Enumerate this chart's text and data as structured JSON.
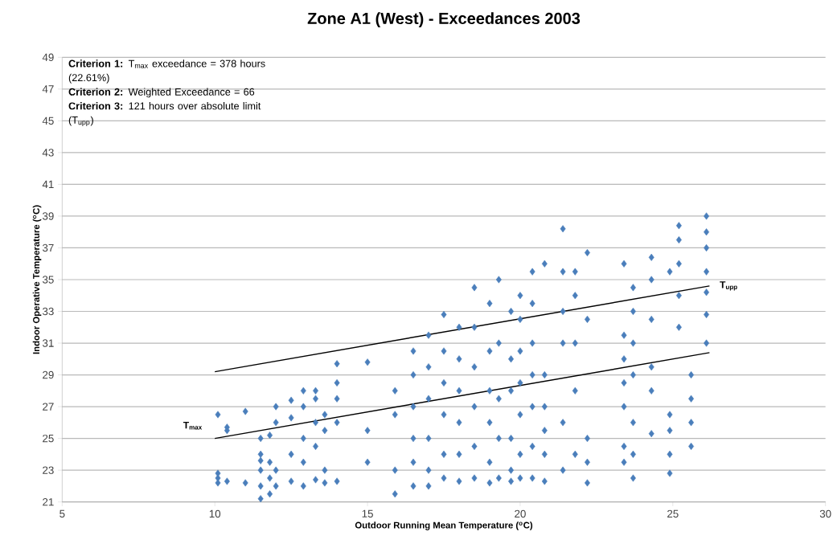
{
  "chart_data": {
    "type": "scatter",
    "title": "Zone A1 (West) - Exceedances 2003",
    "xlabel": "Outdoor Running Mean Temperature ($^{o}$C)",
    "ylabel": "Indoor Operative Temperature ($^{o}$C)",
    "annotations": [
      "**Criterion 1:** T$_{max}$ exceedance = 378 hours (22.61%)",
      "**Criterion 2:** Weighted Exceedance = 66",
      "**Criterion 3:** 121 hours over absolute limit (T$_{upp}$)"
    ],
    "xlim": [
      5,
      30
    ],
    "xticks": [
      5,
      10,
      15,
      20,
      25,
      30
    ],
    "ylim": [
      21,
      49
    ],
    "yticks": [
      21,
      23,
      25,
      27,
      29,
      31,
      33,
      35,
      37,
      39,
      41,
      43,
      45,
      47,
      49
    ],
    "grid": "y",
    "series": [
      {
        "marker": "diamond",
        "color": "#4a7ebb",
        "x": [
          10.1,
          10.1,
          10.1,
          10.1,
          10.4,
          10.4,
          10.4,
          11.0,
          11.0,
          11.5,
          11.5,
          11.5,
          11.5,
          11.5,
          11.5,
          11.8,
          11.8,
          11.8,
          11.8,
          12.0,
          12.0,
          12.0,
          12.0,
          12.5,
          12.5,
          12.5,
          12.5,
          12.9,
          12.9,
          12.9,
          12.9,
          12.9,
          13.3,
          13.3,
          13.3,
          13.3,
          13.3,
          13.6,
          13.6,
          13.6,
          13.6,
          14.0,
          14.0,
          14.0,
          14.0,
          14.0,
          15.0,
          15.0,
          15.0,
          15.9,
          15.9,
          15.9,
          15.9,
          16.5,
          16.5,
          16.5,
          16.5,
          16.5,
          16.5,
          17.0,
          17.0,
          17.0,
          17.0,
          17.0,
          17.0,
          17.5,
          17.5,
          17.5,
          17.5,
          17.5,
          17.5,
          18.0,
          18.0,
          18.0,
          18.0,
          18.0,
          18.0,
          18.5,
          18.5,
          18.5,
          18.5,
          18.5,
          18.5,
          19.0,
          19.0,
          19.0,
          19.0,
          19.0,
          19.0,
          19.3,
          19.3,
          19.3,
          19.3,
          19.3,
          19.7,
          19.7,
          19.7,
          19.7,
          19.7,
          19.7,
          20.0,
          20.0,
          20.0,
          20.0,
          20.0,
          20.0,
          20.0,
          20.4,
          20.4,
          20.4,
          20.4,
          20.4,
          20.4,
          20.4,
          20.8,
          20.8,
          20.8,
          20.8,
          20.8,
          20.8,
          21.4,
          21.4,
          21.4,
          21.4,
          21.4,
          21.4,
          21.8,
          21.8,
          21.8,
          21.8,
          21.8,
          22.2,
          22.2,
          22.2,
          22.2,
          22.2,
          23.4,
          23.4,
          23.4,
          23.4,
          23.4,
          23.4,
          23.4,
          23.7,
          23.7,
          23.7,
          23.7,
          23.7,
          23.7,
          23.7,
          24.3,
          24.3,
          24.3,
          24.3,
          24.3,
          24.3,
          24.9,
          24.9,
          24.9,
          24.9,
          24.9,
          25.2,
          25.2,
          25.2,
          25.2,
          25.2,
          25.6,
          25.6,
          25.6,
          25.6,
          26.1,
          26.1,
          26.1,
          26.1,
          26.1,
          26.1,
          26.1
        ],
        "values": [
          22.2,
          22.5,
          22.8,
          26.5,
          22.3,
          25.5,
          25.7,
          22.2,
          26.7,
          21.2,
          22.0,
          23.0,
          23.6,
          24.0,
          25.0,
          21.5,
          22.5,
          23.5,
          25.2,
          22.0,
          23.0,
          26.0,
          27.0,
          22.3,
          24.0,
          26.3,
          27.4,
          22.0,
          23.5,
          25.0,
          27.0,
          28.0,
          22.4,
          24.5,
          26.0,
          27.5,
          28.0,
          22.2,
          23.0,
          25.5,
          26.5,
          22.3,
          26.0,
          27.5,
          28.5,
          29.7,
          23.5,
          25.5,
          29.8,
          21.5,
          23.0,
          26.5,
          28.0,
          22.0,
          23.5,
          25.0,
          27.0,
          29.0,
          30.5,
          22.0,
          23.0,
          25.0,
          27.5,
          29.5,
          31.5,
          22.5,
          24.0,
          26.5,
          28.5,
          30.5,
          32.8,
          22.3,
          24.0,
          26.0,
          28.0,
          30.0,
          32.0,
          22.5,
          24.5,
          27.0,
          29.5,
          32.0,
          34.5,
          22.2,
          23.5,
          26.0,
          28.0,
          30.5,
          33.5,
          22.5,
          25.0,
          27.5,
          31.0,
          35.0,
          22.3,
          23.0,
          25.0,
          28.0,
          30.0,
          33.0,
          22.5,
          24.0,
          26.5,
          28.5,
          30.5,
          32.5,
          34.0,
          22.5,
          24.5,
          27.0,
          29.0,
          31.0,
          33.5,
          35.5,
          22.3,
          24.0,
          25.5,
          27.0,
          29.0,
          36.0,
          23.0,
          26.0,
          31.0,
          33.0,
          35.5,
          38.2,
          24.0,
          28.0,
          31.0,
          34.0,
          35.5,
          22.2,
          23.5,
          25.0,
          32.5,
          36.7,
          23.5,
          24.5,
          27.0,
          28.5,
          30.0,
          31.5,
          36.0,
          22.5,
          24.0,
          26.0,
          29.0,
          31.0,
          33.0,
          34.5,
          25.3,
          28.0,
          29.5,
          32.5,
          35.0,
          36.4,
          22.8,
          24.0,
          25.5,
          26.5,
          35.5,
          32.0,
          34.0,
          36.0,
          37.5,
          38.4,
          24.5,
          26.0,
          27.5,
          29.0,
          31.0,
          32.8,
          34.2,
          35.5,
          37.0,
          38.0,
          39.0
        ]
      },
      {
        "type": "line",
        "name": "T$_{max}$",
        "color": "#000000",
        "x": [
          10,
          26.2
        ],
        "values": [
          25.0,
          30.4
        ]
      },
      {
        "type": "line",
        "name": "T$_{upp}$",
        "color": "#000000",
        "x": [
          10,
          26.2
        ],
        "values": [
          29.2,
          34.6
        ]
      }
    ]
  }
}
